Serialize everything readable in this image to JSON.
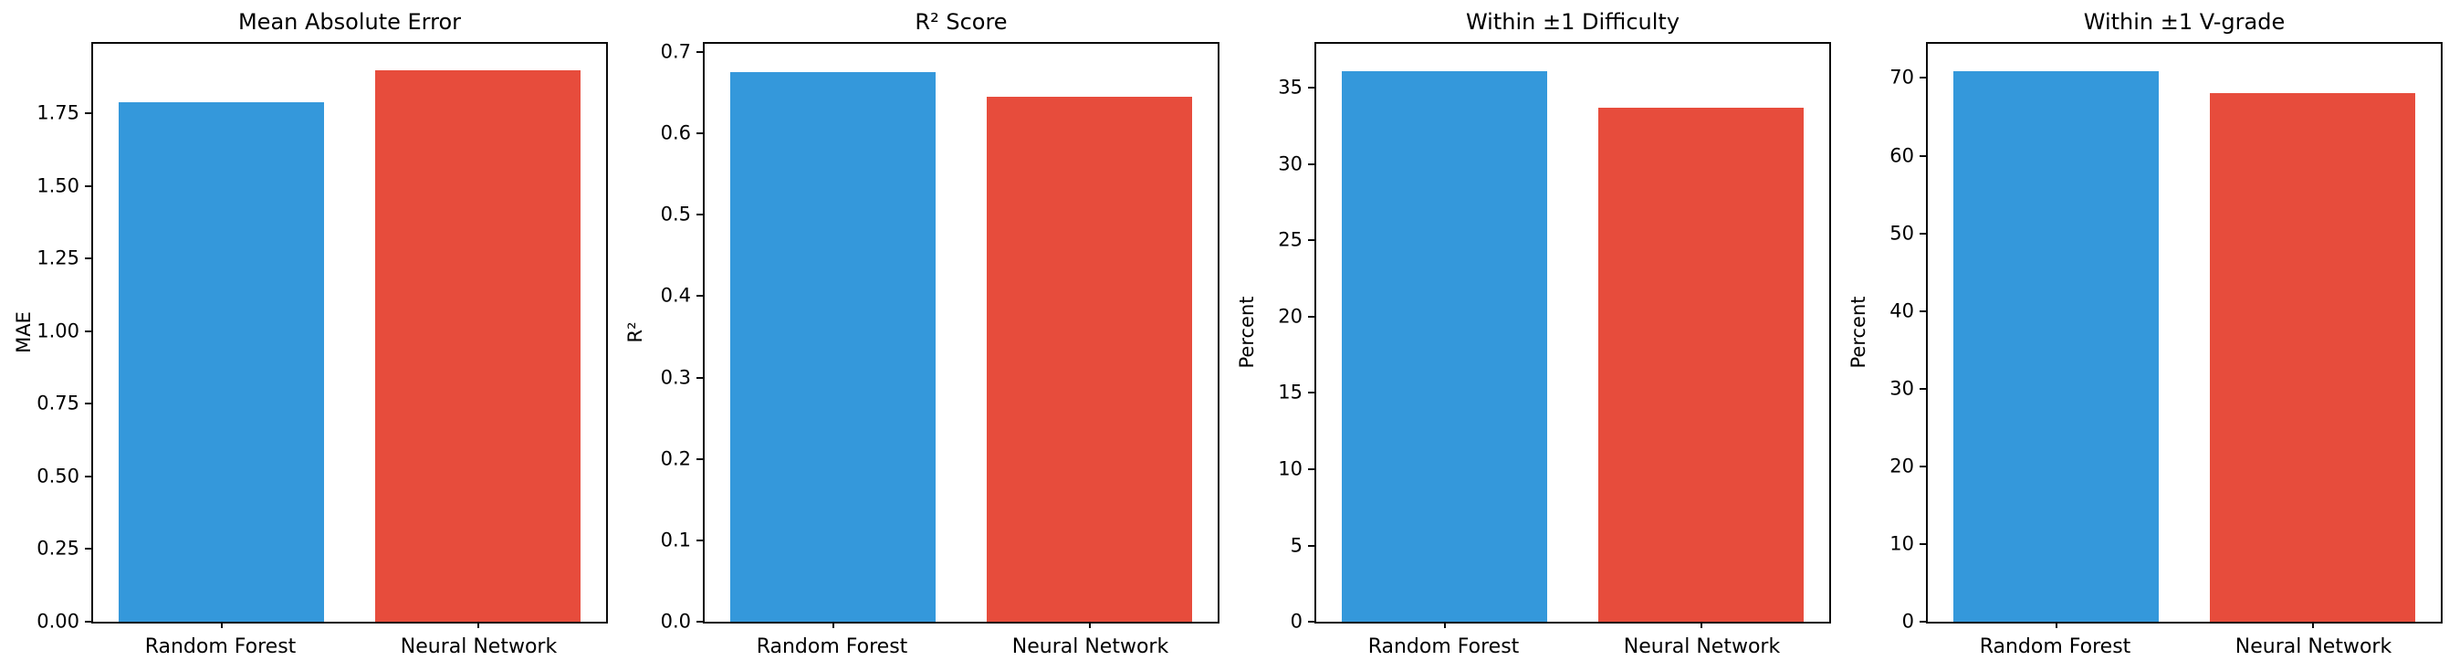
{
  "figure": {
    "background": "#ffffff",
    "axis_color": "#0a0a0a",
    "text_color": "#000000"
  },
  "chart_data": [
    {
      "type": "bar",
      "title": "Mean Absolute Error",
      "ylabel": "MAE",
      "xlabel": "",
      "categories": [
        "Random Forest",
        "Neural Network"
      ],
      "values": [
        1.79,
        1.9
      ],
      "bar_colors": [
        "#3498db",
        "#e74c3c"
      ],
      "ylim": [
        0,
        1.99
      ],
      "grid": false,
      "legend": null,
      "yticks": [
        {
          "value": 0.0,
          "label": "0.00"
        },
        {
          "value": 0.25,
          "label": "0.25"
        },
        {
          "value": 0.5,
          "label": "0.50"
        },
        {
          "value": 0.75,
          "label": "0.75"
        },
        {
          "value": 1.0,
          "label": "1.00"
        },
        {
          "value": 1.25,
          "label": "1.25"
        },
        {
          "value": 1.5,
          "label": "1.50"
        },
        {
          "value": 1.75,
          "label": "1.75"
        }
      ]
    },
    {
      "type": "bar",
      "title": "R² Score",
      "ylabel": "R²",
      "xlabel": "",
      "categories": [
        "Random Forest",
        "Neural Network"
      ],
      "values": [
        0.675,
        0.645
      ],
      "bar_colors": [
        "#3498db",
        "#e74c3c"
      ],
      "ylim": [
        0,
        0.71
      ],
      "grid": false,
      "legend": null,
      "yticks": [
        {
          "value": 0.0,
          "label": "0.0"
        },
        {
          "value": 0.1,
          "label": "0.1"
        },
        {
          "value": 0.2,
          "label": "0.2"
        },
        {
          "value": 0.3,
          "label": "0.3"
        },
        {
          "value": 0.4,
          "label": "0.4"
        },
        {
          "value": 0.5,
          "label": "0.5"
        },
        {
          "value": 0.6,
          "label": "0.6"
        },
        {
          "value": 0.7,
          "label": "0.7"
        }
      ]
    },
    {
      "type": "bar",
      "title": "Within ±1 Difficulty",
      "ylabel": "Percent",
      "xlabel": "",
      "categories": [
        "Random Forest",
        "Neural Network"
      ],
      "values": [
        36.1,
        33.7
      ],
      "bar_colors": [
        "#3498db",
        "#e74c3c"
      ],
      "ylim": [
        0,
        37.9
      ],
      "grid": false,
      "legend": null,
      "yticks": [
        {
          "value": 0,
          "label": "0"
        },
        {
          "value": 5,
          "label": "5"
        },
        {
          "value": 10,
          "label": "10"
        },
        {
          "value": 15,
          "label": "15"
        },
        {
          "value": 20,
          "label": "20"
        },
        {
          "value": 25,
          "label": "25"
        },
        {
          "value": 30,
          "label": "30"
        },
        {
          "value": 35,
          "label": "35"
        }
      ]
    },
    {
      "type": "bar",
      "title": "Within ±1 V-grade",
      "ylabel": "Percent",
      "xlabel": "",
      "categories": [
        "Random Forest",
        "Neural Network"
      ],
      "values": [
        70.9,
        68.0
      ],
      "bar_colors": [
        "#3498db",
        "#e74c3c"
      ],
      "ylim": [
        0,
        74.4
      ],
      "grid": false,
      "legend": null,
      "yticks": [
        {
          "value": 0,
          "label": "0"
        },
        {
          "value": 10,
          "label": "10"
        },
        {
          "value": 20,
          "label": "20"
        },
        {
          "value": 30,
          "label": "30"
        },
        {
          "value": 40,
          "label": "40"
        },
        {
          "value": 50,
          "label": "50"
        },
        {
          "value": 60,
          "label": "60"
        },
        {
          "value": 70,
          "label": "70"
        }
      ]
    }
  ]
}
